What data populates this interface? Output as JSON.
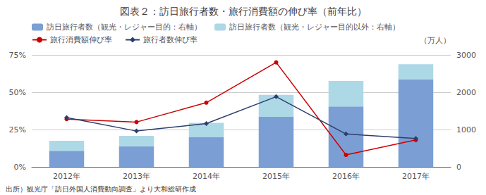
{
  "chart_data": {
    "type": "bar",
    "title": "図表２：訪日旅行者数・旅行消費額の伸び率（前年比）",
    "categories": [
      "2012年",
      "2013年",
      "2014年",
      "2015年",
      "2016年",
      "2017年"
    ],
    "series": [
      {
        "name": "訪日旅行者数（観光・レジャー目的：右軸）",
        "type": "bar",
        "axis": "y2",
        "color": "#7b9fd4",
        "values": [
          430,
          550,
          800,
          1340,
          1620,
          2340
        ]
      },
      {
        "name": "訪日旅行者数（観光・レジャー目的以外：右軸）",
        "type": "bar",
        "axis": "y2",
        "color": "#add8e6",
        "values": [
          270,
          280,
          380,
          590,
          680,
          410
        ]
      },
      {
        "name": "旅行消費額伸び率",
        "type": "line",
        "color": "#cc0000",
        "marker": "circle",
        "values": [
          32,
          30,
          43,
          70,
          8,
          18
        ]
      },
      {
        "name": "旅行者数伸び率",
        "type": "line",
        "color": "#2b3f6e",
        "marker": "diamond",
        "values": [
          33,
          24,
          29,
          47,
          22,
          19
        ]
      }
    ],
    "stacked": true,
    "ylim": [
      0,
      75
    ],
    "yticks": [
      {
        "value": 0,
        "label": "0%"
      },
      {
        "value": 25,
        "label": "25%"
      },
      {
        "value": 50,
        "label": "50%"
      },
      {
        "value": 75,
        "label": "75%"
      }
    ],
    "y2label": "（万人）",
    "y2lim": [
      0,
      3000
    ],
    "y2ticks": [
      0,
      1000,
      2000,
      3000
    ],
    "grid": true,
    "legend": "upper left",
    "annotations": [
      "出所）観光庁「訪日外国人消費動向調査」より大和総研作成"
    ]
  }
}
